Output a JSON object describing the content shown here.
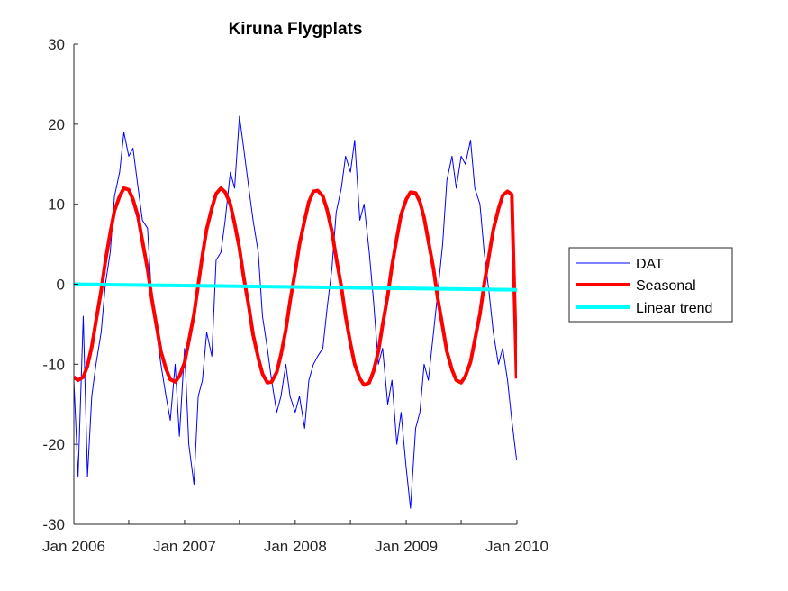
{
  "chart_data": {
    "type": "line",
    "title": "Kiruna Flygplats",
    "xlabel": "",
    "ylabel": "",
    "xlim": [
      "2006-01-01",
      "2010-01-01"
    ],
    "ylim": [
      -30,
      30
    ],
    "x_ticks": [
      {
        "date": "2006-01-01",
        "label": "Jan 2006"
      },
      {
        "date": "2006-07-01",
        "label": ""
      },
      {
        "date": "2007-01-01",
        "label": "Jan 2007"
      },
      {
        "date": "2007-07-01",
        "label": ""
      },
      {
        "date": "2008-01-01",
        "label": "Jan 2008"
      },
      {
        "date": "2008-07-01",
        "label": ""
      },
      {
        "date": "2009-01-01",
        "label": "Jan 2009"
      },
      {
        "date": "2009-07-01",
        "label": ""
      },
      {
        "date": "2010-01-01",
        "label": "Jan 2010"
      }
    ],
    "y_ticks": [
      -30,
      -20,
      -10,
      0,
      10,
      20,
      30
    ],
    "grid": false,
    "legend_position": "outside-right",
    "series": [
      {
        "name": "DAT",
        "color": "#0000ff",
        "style": "thin line",
        "x": [
          "2006-01-01",
          "2006-01-15",
          "2006-02-01",
          "2006-02-15",
          "2006-03-01",
          "2006-03-15",
          "2006-04-01",
          "2006-04-15",
          "2006-05-01",
          "2006-05-15",
          "2006-06-01",
          "2006-06-15",
          "2006-07-01",
          "2006-07-15",
          "2006-08-01",
          "2006-08-15",
          "2006-09-01",
          "2006-09-15",
          "2006-10-01",
          "2006-10-15",
          "2006-11-01",
          "2006-11-15",
          "2006-12-01",
          "2006-12-15",
          "2007-01-01",
          "2007-01-15",
          "2007-02-01",
          "2007-02-15",
          "2007-03-01",
          "2007-03-15",
          "2007-04-01",
          "2007-04-15",
          "2007-05-01",
          "2007-05-15",
          "2007-06-01",
          "2007-06-15",
          "2007-07-01",
          "2007-07-15",
          "2007-08-01",
          "2007-08-15",
          "2007-09-01",
          "2007-09-15",
          "2007-10-01",
          "2007-10-15",
          "2007-11-01",
          "2007-11-15",
          "2007-12-01",
          "2007-12-15",
          "2008-01-01",
          "2008-01-15",
          "2008-02-01",
          "2008-02-15",
          "2008-03-01",
          "2008-03-15",
          "2008-04-01",
          "2008-04-15",
          "2008-05-01",
          "2008-05-15",
          "2008-06-01",
          "2008-06-15",
          "2008-07-01",
          "2008-07-15",
          "2008-08-01",
          "2008-08-15",
          "2008-09-01",
          "2008-09-15",
          "2008-10-01",
          "2008-10-15",
          "2008-11-01",
          "2008-11-15",
          "2008-12-01",
          "2008-12-15",
          "2009-01-01",
          "2009-01-15",
          "2009-02-01",
          "2009-02-15",
          "2009-03-01",
          "2009-03-15",
          "2009-04-01",
          "2009-04-15",
          "2009-05-01",
          "2009-05-15",
          "2009-06-01",
          "2009-06-15",
          "2009-07-01",
          "2009-07-15",
          "2009-08-01",
          "2009-08-15",
          "2009-09-01",
          "2009-09-15",
          "2009-10-01",
          "2009-10-15",
          "2009-11-01",
          "2009-11-15",
          "2009-12-01",
          "2009-12-15",
          "2009-12-31"
        ],
        "y": [
          -12,
          -24,
          -4,
          -24,
          -14,
          -10,
          -6,
          0,
          4,
          11,
          14,
          19,
          16,
          17,
          12,
          8,
          7,
          -2,
          -6,
          -10,
          -14,
          -17,
          -10,
          -19,
          -8,
          -20,
          -25,
          -14,
          -12,
          -6,
          -9,
          3,
          4,
          8,
          14,
          12,
          21,
          17,
          12,
          8,
          4,
          -4,
          -8,
          -12,
          -16,
          -14,
          -10,
          -14,
          -16,
          -14,
          -18,
          -12,
          -10,
          -9,
          -8,
          -3,
          2,
          9,
          12,
          16,
          14,
          18,
          8,
          10,
          4,
          -2,
          -10,
          -8,
          -15,
          -12,
          -20,
          -16,
          -23,
          -28,
          -18,
          -16,
          -10,
          -12,
          -6,
          -1,
          5,
          13,
          16,
          12,
          16,
          15,
          18,
          12,
          10,
          4,
          -1,
          -6,
          -10,
          -8,
          -12,
          -17,
          -22
        ]
      },
      {
        "name": "Seasonal",
        "color": "#ff0000",
        "style": "thick line",
        "x": [
          "2006-01-01",
          "2006-01-15",
          "2006-02-01",
          "2006-02-15",
          "2006-03-01",
          "2006-03-15",
          "2006-04-01",
          "2006-04-15",
          "2006-05-01",
          "2006-05-15",
          "2006-06-01",
          "2006-06-15",
          "2006-07-01",
          "2006-07-15",
          "2006-08-01",
          "2006-08-15",
          "2006-09-01",
          "2006-09-15",
          "2006-10-01",
          "2006-10-15",
          "2006-11-01",
          "2006-11-15",
          "2006-12-01",
          "2006-12-15",
          "2007-01-01",
          "2007-01-15",
          "2007-02-01",
          "2007-02-15",
          "2007-03-01",
          "2007-03-15",
          "2007-04-01",
          "2007-04-15",
          "2007-05-01",
          "2007-05-15",
          "2007-06-01",
          "2007-06-15",
          "2007-07-01",
          "2007-07-15",
          "2007-08-01",
          "2007-08-15",
          "2007-09-01",
          "2007-09-15",
          "2007-10-01",
          "2007-10-15",
          "2007-11-01",
          "2007-11-15",
          "2007-12-01",
          "2007-12-15",
          "2008-01-01",
          "2008-01-15",
          "2008-02-01",
          "2008-02-15",
          "2008-03-01",
          "2008-03-15",
          "2008-04-01",
          "2008-04-15",
          "2008-05-01",
          "2008-05-15",
          "2008-06-01",
          "2008-06-15",
          "2008-07-01",
          "2008-07-15",
          "2008-08-01",
          "2008-08-15",
          "2008-09-01",
          "2008-09-15",
          "2008-10-01",
          "2008-10-15",
          "2008-11-01",
          "2008-11-15",
          "2008-12-01",
          "2008-12-15",
          "2009-01-01",
          "2009-01-15",
          "2009-02-01",
          "2009-02-15",
          "2009-03-01",
          "2009-03-15",
          "2009-04-01",
          "2009-04-15",
          "2009-05-01",
          "2009-05-15",
          "2009-06-01",
          "2009-06-15",
          "2009-07-01",
          "2009-07-15",
          "2009-08-01",
          "2009-08-15",
          "2009-09-01",
          "2009-09-15",
          "2009-10-01",
          "2009-10-15",
          "2009-11-01",
          "2009-11-15",
          "2009-12-01",
          "2009-12-15",
          "2009-12-31"
        ],
        "y": [
          -11.6,
          -12.0,
          -11.6,
          -10.2,
          -7.8,
          -4.6,
          -0.8,
          2.9,
          6.4,
          9.2,
          11.0,
          12.0,
          11.8,
          10.6,
          8.4,
          5.4,
          1.9,
          -1.8,
          -5.3,
          -8.4,
          -10.6,
          -11.9,
          -12.2,
          -11.5,
          -9.8,
          -7.1,
          -3.8,
          -0.1,
          3.6,
          6.9,
          9.5,
          11.3,
          12.0,
          11.5,
          10.0,
          7.6,
          4.5,
          0.9,
          -2.8,
          -6.3,
          -9.2,
          -11.2,
          -12.3,
          -12.2,
          -11.0,
          -8.8,
          -5.7,
          -2.1,
          1.6,
          5.0,
          8.0,
          10.3,
          11.6,
          11.7,
          11.0,
          9.3,
          6.6,
          3.3,
          -0.3,
          -4.0,
          -7.4,
          -10.0,
          -11.8,
          -12.6,
          -12.3,
          -10.9,
          -8.4,
          -5.1,
          -1.4,
          2.3,
          5.8,
          8.7,
          10.6,
          11.5,
          11.4,
          10.3,
          8.3,
          5.4,
          1.9,
          -1.8,
          -5.3,
          -8.4,
          -10.7,
          -12.0,
          -12.3,
          -11.5,
          -9.7,
          -7.0,
          -3.7,
          0,
          3.6,
          6.8,
          9.4,
          11.1,
          11.6,
          11.2,
          -11.8
        ]
      },
      {
        "name": "Linear trend",
        "color": "#00ffff",
        "style": "thick line",
        "x": [
          "2006-01-01",
          "2010-01-01"
        ],
        "y": [
          0.0,
          -0.7
        ]
      }
    ]
  }
}
